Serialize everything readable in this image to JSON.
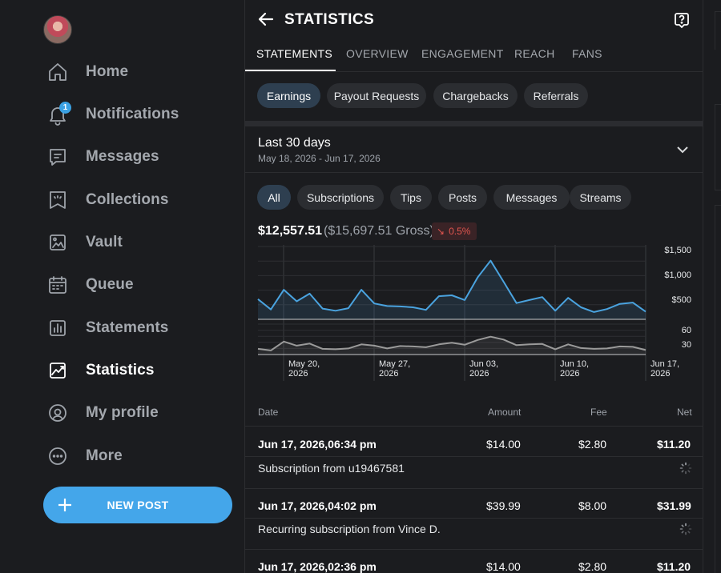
{
  "sidebar": {
    "items": [
      {
        "label": "Home",
        "icon": "home-icon"
      },
      {
        "label": "Notifications",
        "icon": "bell-icon",
        "badge": "1"
      },
      {
        "label": "Messages",
        "icon": "message-icon"
      },
      {
        "label": "Collections",
        "icon": "collections-icon"
      },
      {
        "label": "Vault",
        "icon": "vault-icon"
      },
      {
        "label": "Queue",
        "icon": "calendar-icon"
      },
      {
        "label": "Statements",
        "icon": "statements-icon"
      },
      {
        "label": "Statistics",
        "icon": "statistics-icon",
        "active": true
      },
      {
        "label": "My profile",
        "icon": "profile-icon"
      },
      {
        "label": "More",
        "icon": "more-icon"
      }
    ],
    "new_post_label": "NEW POST"
  },
  "header": {
    "title": "STATISTICS"
  },
  "tabs": [
    "STATEMENTS",
    "OVERVIEW",
    "ENGAGEMENT",
    "REACH",
    "FANS"
  ],
  "active_tab": "STATEMENTS",
  "statement_types": [
    "Earnings",
    "Payout Requests",
    "Chargebacks",
    "Referrals"
  ],
  "active_statement_type": "Earnings",
  "period": {
    "title": "Last 30 days",
    "range": "May 18, 2026 - Jun 17, 2026"
  },
  "categories": [
    "All",
    "Subscriptions",
    "Tips",
    "Posts",
    "Messages",
    "Streams"
  ],
  "active_category": "All",
  "summary": {
    "net": "$12,557.51",
    "gross": "($15,697.51 Gross)",
    "change": "0.5%",
    "change_direction": "down"
  },
  "colors": {
    "accent": "#44a6ea",
    "line_amount": "#4aa3df",
    "line_count": "#9a9a9a",
    "negative": "#e2554f"
  },
  "chart_data": {
    "type": "line",
    "x_ticks": [
      "May 20,\n2026",
      "May 27,\n2026",
      "Jun 03,\n2026",
      "Jun 10,\n2026",
      "Jun 17,\n2026"
    ],
    "series": [
      {
        "axis_ticks": [
          "$1,500",
          "$1,000",
          "$500"
        ],
        "ylim": [
          0,
          1700
        ],
        "values": [
          470,
          230,
          690,
          420,
          600,
          250,
          200,
          260,
          690,
          370,
          310,
          300,
          280,
          220,
          540,
          560,
          450,
          980,
          1370,
          880,
          380,
          450,
          520,
          200,
          500,
          280,
          170,
          240,
          360,
          390,
          180
        ]
      },
      {
        "axis_ticks": [
          "60",
          "30"
        ],
        "ylim": [
          0,
          75
        ],
        "values": [
          14,
          10,
          32,
          22,
          27,
          14,
          13,
          15,
          25,
          22,
          15,
          21,
          20,
          18,
          25,
          29,
          24,
          36,
          44,
          37,
          23,
          25,
          26,
          13,
          25,
          16,
          14,
          15,
          20,
          19,
          11
        ]
      }
    ]
  },
  "table": {
    "headers": {
      "date": "Date",
      "amount": "Amount",
      "fee": "Fee",
      "net": "Net"
    },
    "rows": [
      {
        "date": "Jun 17, 2026,06:34 pm",
        "amount": "$14.00",
        "fee": "$2.80",
        "net": "$11.20",
        "description": "Subscription from u19467581"
      },
      {
        "date": "Jun 17, 2026,04:02 pm",
        "amount": "$39.99",
        "fee": "$8.00",
        "net": "$31.99",
        "description": "Recurring subscription from Vince D."
      },
      {
        "date": "Jun 17, 2026,02:36 pm",
        "amount": "$14.00",
        "fee": "$2.80",
        "net": "$11.20",
        "description": ""
      }
    ]
  }
}
